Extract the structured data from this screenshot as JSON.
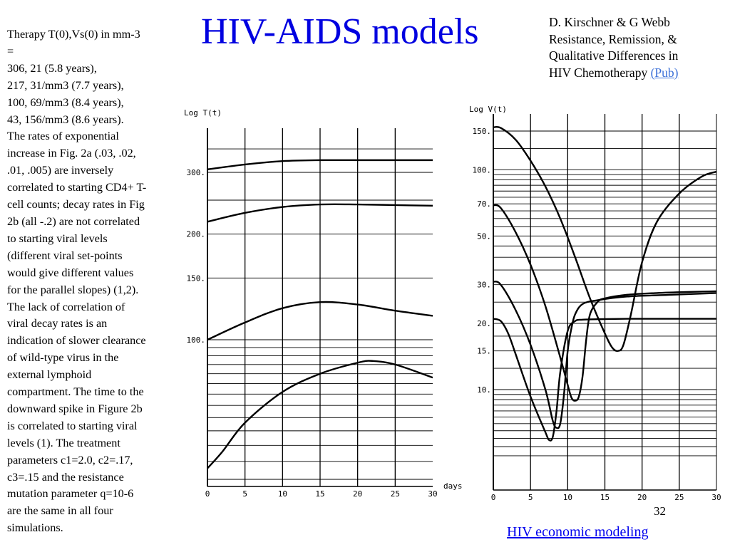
{
  "title": "HIV-AIDS models",
  "left_text": [
    "Therapy T(0),Vs(0) in mm-3",
    "=",
    "306, 21 (5.8 years),",
    "217, 31/mm3 (7.7 years),",
    "100, 69/mm3 (8.4 years),",
    "43, 156/mm3 (8.6 years).",
    "The rates of exponential",
    "increase in Fig. 2a (.03, .02,",
    ".01, .005) are inversely",
    "correlated to starting CD4+ T-",
    "cell counts; decay rates in Fig",
    "2b (all -.2) are not correlated",
    "to starting viral levels",
    "(different viral set-points",
    "would give different values",
    "for the parallel slopes) (1,2).",
    "The lack of correlation of",
    "viral decay rates is an",
    "indication of slower clearance",
    "of wild-type virus in the",
    "external lymphoid",
    "compartment. The time to the",
    "downward spike in Figure 2b",
    "is correlated to starting viral",
    "levels (1). The treatment",
    "parameters c1=2.0, c2=.17,",
    "c3=.15 and the resistance",
    "mutation parameter q=10-6",
    "are the same in all four",
    "simulations."
  ],
  "reference": {
    "lines": [
      "D. Kirschner & G Webb",
      "Resistance, Remission, &",
      "Qualitative Differences in"
    ],
    "last_line": "HIV Chemotherapy ",
    "link": "(Pub)"
  },
  "page_number": "32",
  "footer_link": "HIV economic modeling",
  "chart_data": [
    {
      "type": "line",
      "title": "Log T(t)",
      "xlabel": "days",
      "x_ticks": [
        "0",
        "5",
        "10",
        "15",
        "20",
        "25",
        "30"
      ],
      "y_ticks": [
        "300.",
        "200.",
        "150.",
        "100."
      ],
      "y_scale": "log",
      "xlim": [
        0,
        30
      ],
      "series": [
        {
          "x": [
            0,
            5,
            10,
            15,
            20,
            25,
            30
          ],
          "y": [
            306,
            316,
            323,
            325,
            325,
            325,
            325
          ]
        },
        {
          "x": [
            0,
            5,
            10,
            15,
            20,
            25,
            30
          ],
          "y": [
            217,
            230,
            239,
            243,
            243,
            242,
            241
          ]
        },
        {
          "x": [
            0,
            5,
            10,
            15,
            20,
            25,
            30
          ],
          "y": [
            100,
            112,
            123,
            128,
            126,
            121,
            117
          ]
        },
        {
          "x": [
            0,
            2,
            5,
            10,
            15,
            20,
            22,
            25,
            30
          ],
          "y": [
            43,
            48,
            58,
            71,
            80,
            86,
            87,
            85,
            78
          ]
        }
      ]
    },
    {
      "type": "line",
      "title": "Log V(t)",
      "x_ticks": [
        "0",
        "5",
        "10",
        "15",
        "20",
        "25",
        "30"
      ],
      "y_ticks": [
        "150.",
        "100.",
        "70.",
        "50.",
        "30.",
        "20.",
        "15.",
        "10."
      ],
      "y_scale": "log",
      "xlim": [
        0,
        30
      ],
      "series": [
        {
          "x": [
            0,
            1,
            3,
            5,
            7,
            9,
            11,
            13,
            15,
            16,
            16.8,
            17.5,
            18.5,
            20,
            22,
            25,
            28,
            30
          ],
          "y": [
            156,
            155,
            137,
            110,
            84,
            60,
            40,
            26,
            18,
            15.5,
            15,
            16,
            22,
            38,
            58,
            78,
            93,
            98
          ]
        },
        {
          "x": [
            0,
            1,
            3,
            5,
            7,
            9,
            10,
            10.5,
            11,
            11.5,
            12,
            12.5,
            13,
            14,
            15,
            18,
            22,
            26,
            30
          ],
          "y": [
            69,
            67,
            52,
            37,
            24,
            14,
            10.5,
            9.2,
            8.9,
            9.3,
            11.5,
            17,
            22,
            25,
            26,
            27,
            27.5,
            27.8,
            28
          ]
        },
        {
          "x": [
            0,
            1,
            3,
            5,
            7,
            8,
            8.5,
            9,
            9.5,
            10,
            10.5,
            11,
            12,
            14,
            18,
            24,
            30
          ],
          "y": [
            31,
            30,
            23,
            16,
            10,
            7.2,
            6.7,
            7,
            9.5,
            15,
            19,
            22,
            24.5,
            25.5,
            26.5,
            27,
            27.5
          ]
        },
        {
          "x": [
            0,
            1,
            2,
            3,
            5,
            7,
            7.5,
            8,
            8.5,
            9,
            10,
            11,
            12,
            14,
            18,
            24,
            30
          ],
          "y": [
            21,
            20.5,
            18,
            14.5,
            9.3,
            6.4,
            5.9,
            6.1,
            8,
            12,
            18.5,
            20.5,
            20.8,
            20.9,
            21,
            21,
            21
          ]
        }
      ]
    }
  ]
}
